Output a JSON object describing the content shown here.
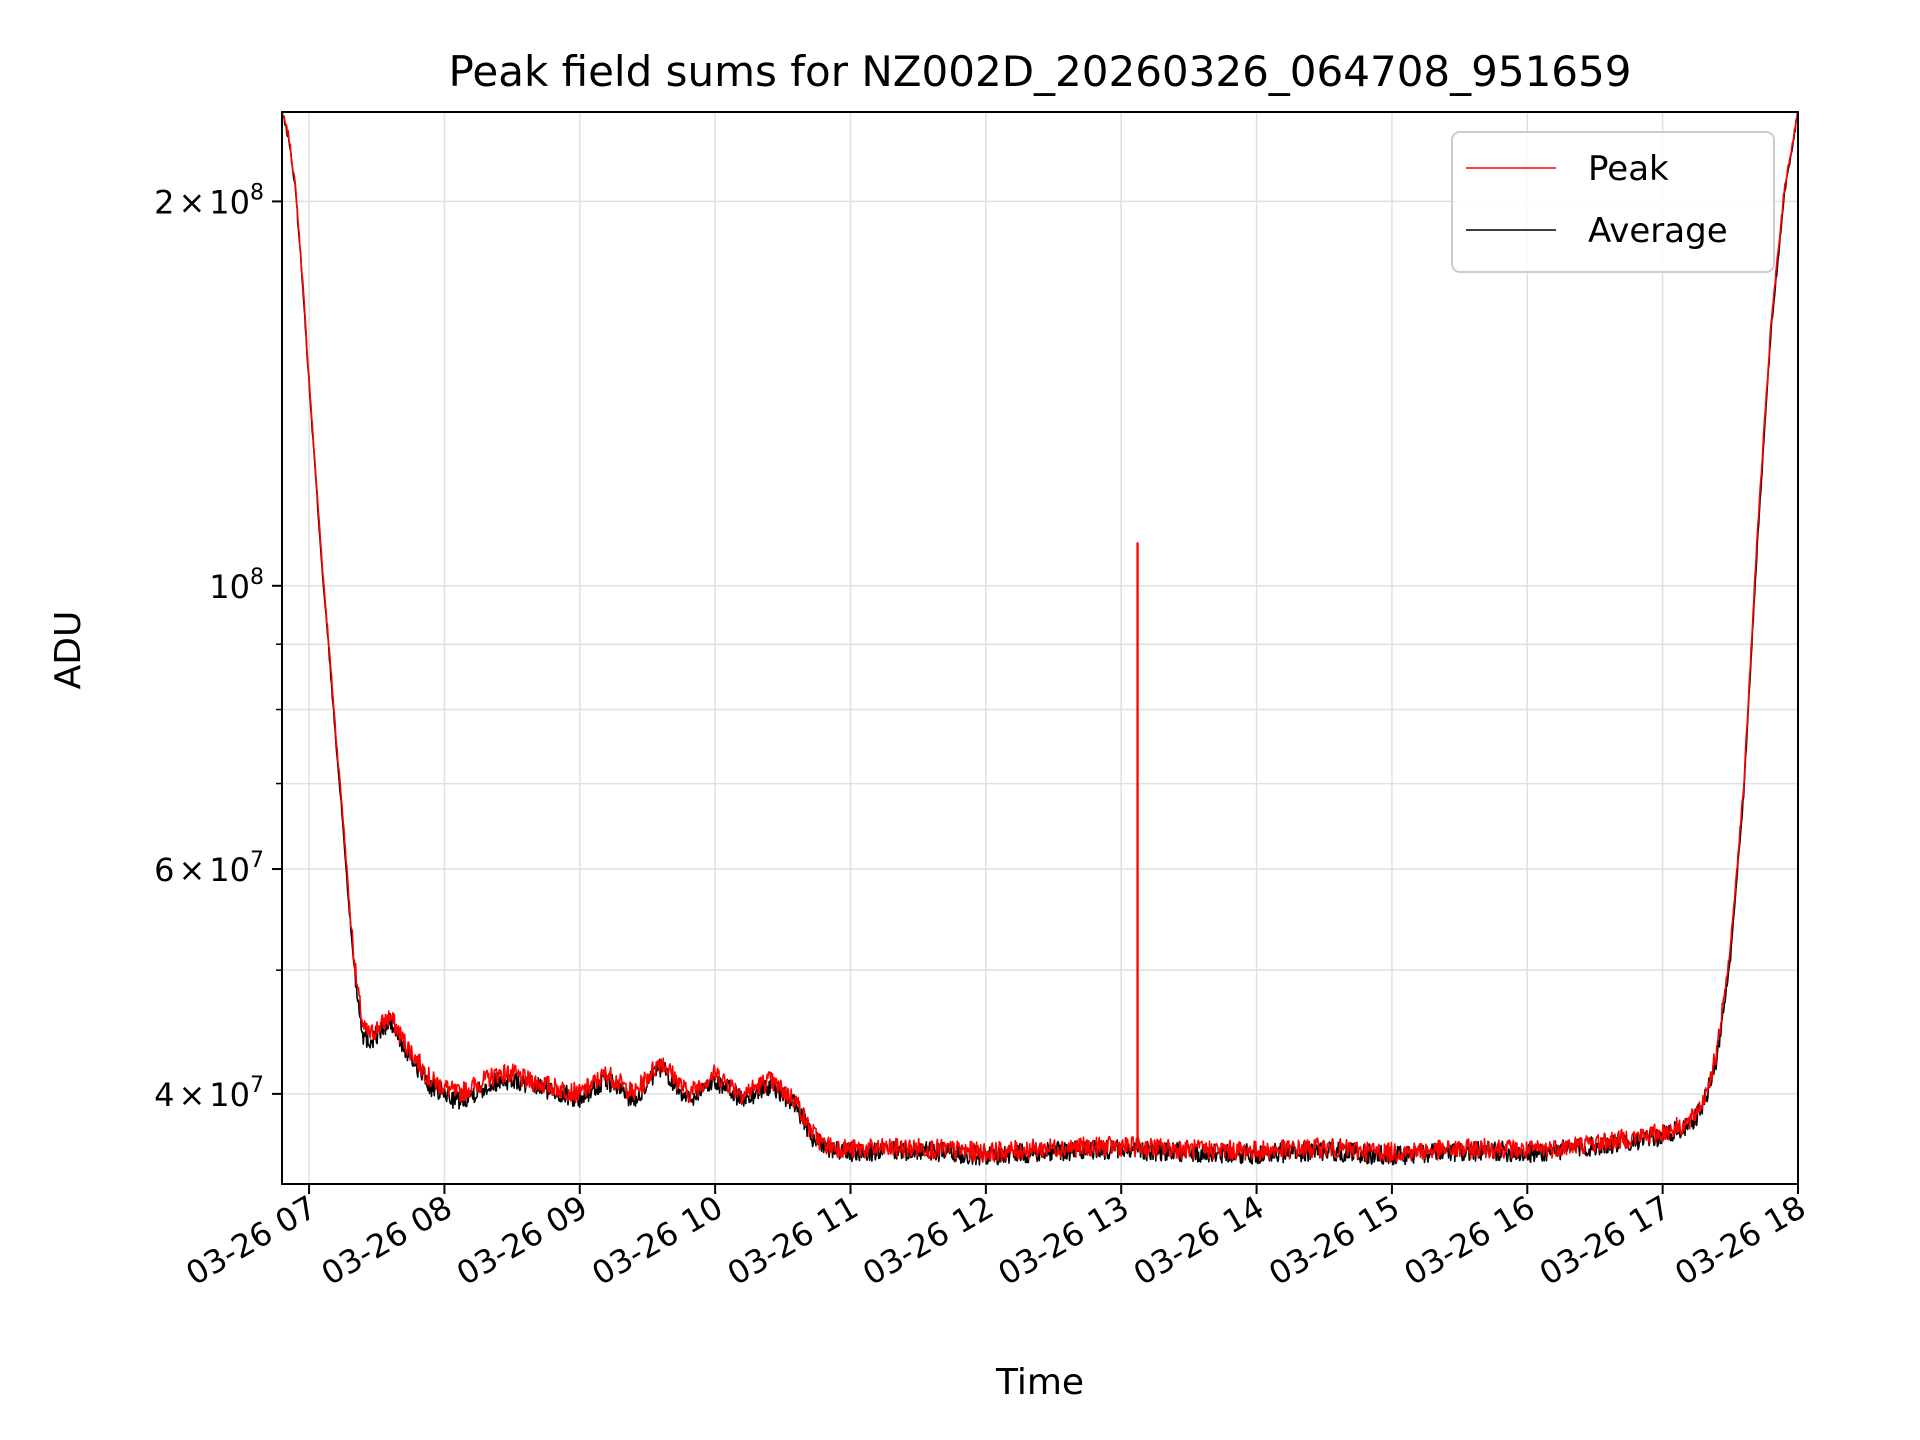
{
  "chart_data": {
    "type": "line",
    "title": "Peak field sums for NZ002D_20260326_064708_951659",
    "xlabel": "Time",
    "ylabel": "ADU",
    "yscale": "log",
    "ylim": [
      34000000,
      235000000
    ],
    "xlim_hours": [
      6.8,
      18.0
    ],
    "grid": true,
    "legend_position": "top-right",
    "x_ticks": [
      {
        "hour": 7,
        "label": "03-26 07"
      },
      {
        "hour": 8,
        "label": "03-26 08"
      },
      {
        "hour": 9,
        "label": "03-26 09"
      },
      {
        "hour": 10,
        "label": "03-26 10"
      },
      {
        "hour": 11,
        "label": "03-26 11"
      },
      {
        "hour": 12,
        "label": "03-26 12"
      },
      {
        "hour": 13,
        "label": "03-26 13"
      },
      {
        "hour": 14,
        "label": "03-26 14"
      },
      {
        "hour": 15,
        "label": "03-26 15"
      },
      {
        "hour": 16,
        "label": "03-26 16"
      },
      {
        "hour": 17,
        "label": "03-26 17"
      },
      {
        "hour": 18,
        "label": "03-26 18"
      }
    ],
    "y_major_ticks": [
      {
        "value": 40000000,
        "mantissa": "4",
        "exp": "7"
      },
      {
        "value": 60000000,
        "mantissa": "6",
        "exp": "7"
      },
      {
        "value": 100000000,
        "mantissa": "",
        "exp": "8"
      },
      {
        "value": 200000000,
        "mantissa": "2",
        "exp": "8"
      }
    ],
    "y_minor_ticks": [
      50000000,
      70000000,
      80000000,
      90000000
    ],
    "series": [
      {
        "name": "Peak",
        "color": "#ff0000",
        "spike": {
          "hour": 13.12,
          "value": 108000000
        },
        "x_hours": [
          6.8,
          6.85,
          6.9,
          6.95,
          7.0,
          7.05,
          7.1,
          7.15,
          7.2,
          7.25,
          7.3,
          7.35,
          7.4,
          7.45,
          7.5,
          7.55,
          7.6,
          7.7,
          7.8,
          7.9,
          8.0,
          8.1,
          8.2,
          8.3,
          8.4,
          8.5,
          8.6,
          8.7,
          8.8,
          9.0,
          9.2,
          9.4,
          9.6,
          9.8,
          10.0,
          10.2,
          10.4,
          10.6,
          10.7,
          10.8,
          11.0,
          11.5,
          12.0,
          12.5,
          13.0,
          13.5,
          14.0,
          14.5,
          15.0,
          15.5,
          15.8,
          16.0,
          16.5,
          16.8,
          17.0,
          17.2,
          17.3,
          17.4,
          17.5,
          17.6,
          17.7,
          17.8,
          17.9,
          18.0
        ],
        "values": [
          235000000,
          225000000,
          205000000,
          175000000,
          145000000,
          122000000,
          103000000,
          89000000,
          76000000,
          66000000,
          56000000,
          49000000,
          45000000,
          44500000,
          45000000,
          45500000,
          46000000,
          44000000,
          42500000,
          41000000,
          40500000,
          40000000,
          40500000,
          41000000,
          41500000,
          41500000,
          41000000,
          40800000,
          40500000,
          40000000,
          41500000,
          40000000,
          42500000,
          40000000,
          41500000,
          40000000,
          41000000,
          39500000,
          37500000,
          36500000,
          36200000,
          36300000,
          36000000,
          36300000,
          36400000,
          36200000,
          36100000,
          36300000,
          36000000,
          36200000,
          36300000,
          36100000,
          36600000,
          37000000,
          37300000,
          38000000,
          39500000,
          43000000,
          52000000,
          70000000,
          110000000,
          160000000,
          205000000,
          235000000
        ]
      },
      {
        "name": "Average",
        "color": "#000000",
        "x_hours": [
          6.8,
          6.85,
          6.9,
          6.95,
          7.0,
          7.05,
          7.1,
          7.15,
          7.2,
          7.25,
          7.3,
          7.35,
          7.4,
          7.45,
          7.5,
          7.55,
          7.6,
          7.7,
          7.8,
          7.9,
          8.0,
          8.1,
          8.2,
          8.3,
          8.4,
          8.5,
          8.6,
          8.7,
          8.8,
          9.0,
          9.2,
          9.4,
          9.6,
          9.8,
          10.0,
          10.2,
          10.4,
          10.6,
          10.7,
          10.8,
          11.0,
          11.5,
          12.0,
          12.5,
          13.0,
          13.5,
          14.0,
          14.5,
          15.0,
          15.5,
          15.8,
          16.0,
          16.5,
          16.8,
          17.0,
          17.2,
          17.3,
          17.4,
          17.5,
          17.6,
          17.7,
          17.8,
          17.9,
          18.0
        ],
        "values": [
          235000000,
          224000000,
          204000000,
          174000000,
          144000000,
          121000000,
          102000000,
          88000000,
          75000000,
          65000000,
          55000000,
          48500000,
          44500000,
          44000000,
          44500000,
          45000000,
          45500000,
          43500000,
          42000000,
          40500000,
          40000000,
          39500000,
          40000000,
          40500000,
          41000000,
          41000000,
          40700000,
          40500000,
          40200000,
          39700000,
          41000000,
          39600000,
          42000000,
          39600000,
          41000000,
          39600000,
          40600000,
          39200000,
          37200000,
          36300000,
          36000000,
          36100000,
          35800000,
          36100000,
          36200000,
          36000000,
          35900000,
          36100000,
          35800000,
          36000000,
          36100000,
          35900000,
          36400000,
          36800000,
          37100000,
          37700000,
          39200000,
          42500000,
          51000000,
          69000000,
          108000000,
          158000000,
          203000000,
          235000000
        ]
      }
    ]
  }
}
